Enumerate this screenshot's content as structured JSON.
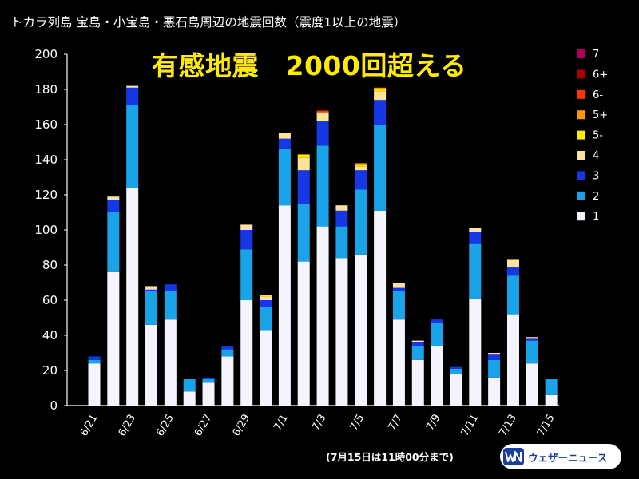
{
  "title": "トカラ列島 宝島・小宝島・悪石島周辺の地震回数（震度1以上の地震）",
  "headline": "有感地震　2000回超える",
  "note": "(7月15日は11時00分まで)",
  "logo": {
    "text": "ウェザーニュース",
    "icon": "weathernews-logo-icon"
  },
  "colors": {
    "1": "#f4f4ff",
    "2": "#1aa3e8",
    "3": "#1637e6",
    "4": "#ffe29a",
    "5-": "#ffea00",
    "5+": "#ff9900",
    "6-": "#ff3300",
    "6+": "#aa0000",
    "7": "#b0005e"
  },
  "chart_data": {
    "type": "bar",
    "stacked": true,
    "title": "トカラ列島 宝島・小宝島・悪石島周辺の地震回数（震度1以上の地震）",
    "categories": [
      "6/21",
      "6/22",
      "6/23",
      "6/24",
      "6/25",
      "6/26",
      "6/27",
      "6/28",
      "6/29",
      "6/30",
      "7/1",
      "7/2",
      "7/3",
      "7/4",
      "7/5",
      "7/6",
      "7/7",
      "7/8",
      "7/9",
      "7/10",
      "7/11",
      "7/12",
      "7/13",
      "7/14",
      "7/15"
    ],
    "tick_labels": [
      "6/21",
      "6/23",
      "6/25",
      "6/27",
      "6/29",
      "7/1",
      "7/3",
      "7/5",
      "7/7",
      "7/9",
      "7/11",
      "7/13",
      "7/15"
    ],
    "ylim": [
      0,
      200
    ],
    "yticks": [
      0,
      20,
      40,
      60,
      80,
      100,
      120,
      140,
      160,
      180,
      200
    ],
    "grid": false,
    "legend_position": "right",
    "legend_order": [
      "7",
      "6+",
      "6-",
      "5+",
      "5-",
      "4",
      "3",
      "2",
      "1"
    ],
    "series": [
      {
        "name": "1",
        "values": [
          24,
          76,
          124,
          46,
          49,
          8,
          13,
          28,
          60,
          43,
          114,
          82,
          102,
          84,
          86,
          111,
          49,
          26,
          34,
          18,
          61,
          16,
          52,
          24,
          6
        ]
      },
      {
        "name": "2",
        "values": [
          2,
          34,
          47,
          19,
          16,
          7,
          2,
          4,
          29,
          13,
          32,
          33,
          46,
          18,
          37,
          49,
          16,
          8,
          13,
          3,
          31,
          10,
          22,
          13,
          9
        ]
      },
      {
        "name": "3",
        "values": [
          2,
          7,
          10,
          1,
          4,
          0,
          1,
          2,
          11,
          4,
          6,
          19,
          14,
          9,
          11,
          14,
          2,
          2,
          2,
          1,
          7,
          3,
          5,
          1,
          0
        ]
      },
      {
        "name": "4",
        "values": [
          0,
          2,
          1,
          2,
          0,
          0,
          0,
          0,
          3,
          2,
          3,
          7,
          5,
          3,
          2,
          5,
          3,
          1,
          0,
          0,
          2,
          1,
          4,
          1,
          0
        ]
      },
      {
        "name": "5-",
        "values": [
          0,
          0,
          0,
          0,
          0,
          0,
          0,
          0,
          0,
          1,
          0,
          2,
          0,
          0,
          1,
          1,
          0,
          0,
          0,
          0,
          0,
          0,
          0,
          0,
          0
        ]
      },
      {
        "name": "5+",
        "values": [
          0,
          0,
          0,
          0,
          0,
          0,
          0,
          0,
          0,
          0,
          0,
          0,
          0,
          0,
          1,
          1,
          0,
          0,
          0,
          0,
          0,
          0,
          0,
          0,
          0
        ]
      },
      {
        "name": "6-",
        "values": [
          0,
          0,
          0,
          0,
          0,
          0,
          0,
          0,
          0,
          0,
          0,
          0,
          1,
          0,
          0,
          0,
          0,
          0,
          0,
          0,
          0,
          0,
          0,
          0,
          0
        ]
      },
      {
        "name": "6+",
        "values": [
          0,
          0,
          0,
          0,
          0,
          0,
          0,
          0,
          0,
          0,
          0,
          0,
          0,
          0,
          0,
          0,
          0,
          0,
          0,
          0,
          0,
          0,
          0,
          0,
          0
        ]
      },
      {
        "name": "7",
        "values": [
          0,
          0,
          0,
          0,
          0,
          0,
          0,
          0,
          0,
          0,
          0,
          0,
          0,
          0,
          0,
          0,
          0,
          0,
          0,
          0,
          0,
          0,
          0,
          0,
          0
        ]
      }
    ]
  }
}
